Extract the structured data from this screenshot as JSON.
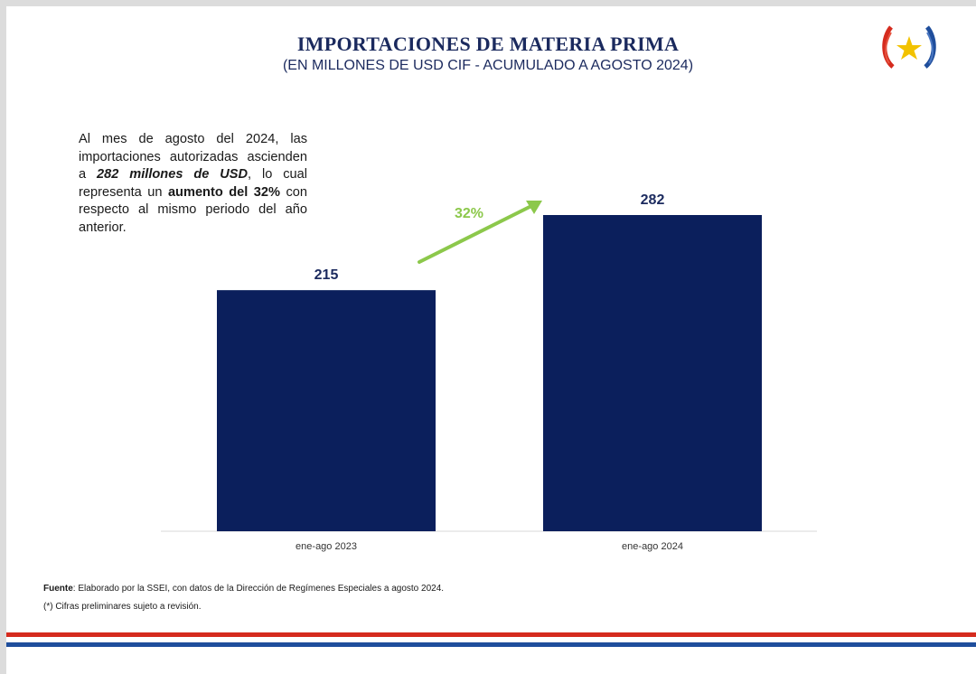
{
  "header": {
    "title": "IMPORTACIONES DE MATERIA PRIMA",
    "subtitle": "(EN MILLONES DE USD CIF - ACUMULADO A AGOSTO 2024)"
  },
  "summary": {
    "part1": "Al mes de agosto del 2024, las importaciones autorizadas ascienden a ",
    "highlight_value": "282 millones de USD",
    "part2": ", lo cual representa un ",
    "highlight_increase": "aumento del 32%",
    "part3": " con respecto al mismo periodo del año anterior."
  },
  "chart_data": {
    "type": "bar",
    "title": "IMPORTACIONES DE MATERIA PRIMA",
    "subtitle": "(EN MILLONES DE USD CIF - ACUMULADO A AGOSTO 2024)",
    "categories": [
      "ene-ago 2023",
      "ene-ago 2024"
    ],
    "values": [
      215,
      282
    ],
    "bar_color": "#0b1f5c",
    "growth_label": "32%",
    "growth_color": "#8cc84b",
    "xlabel": "",
    "ylabel": "",
    "ylim": [
      0,
      350
    ],
    "grid": false,
    "legend": "none"
  },
  "footer": {
    "source_label": "Fuente",
    "source_text": ": Elaborado por la SSEI, con datos de la Dirección de Regímenes Especiales a agosto 2024.",
    "note": "(*) Cifras preliminares sujeto a revisión."
  },
  "colors": {
    "title": "#1b2a5e",
    "stripe_red": "#d52b1e",
    "stripe_blue": "#1f4e9c"
  }
}
